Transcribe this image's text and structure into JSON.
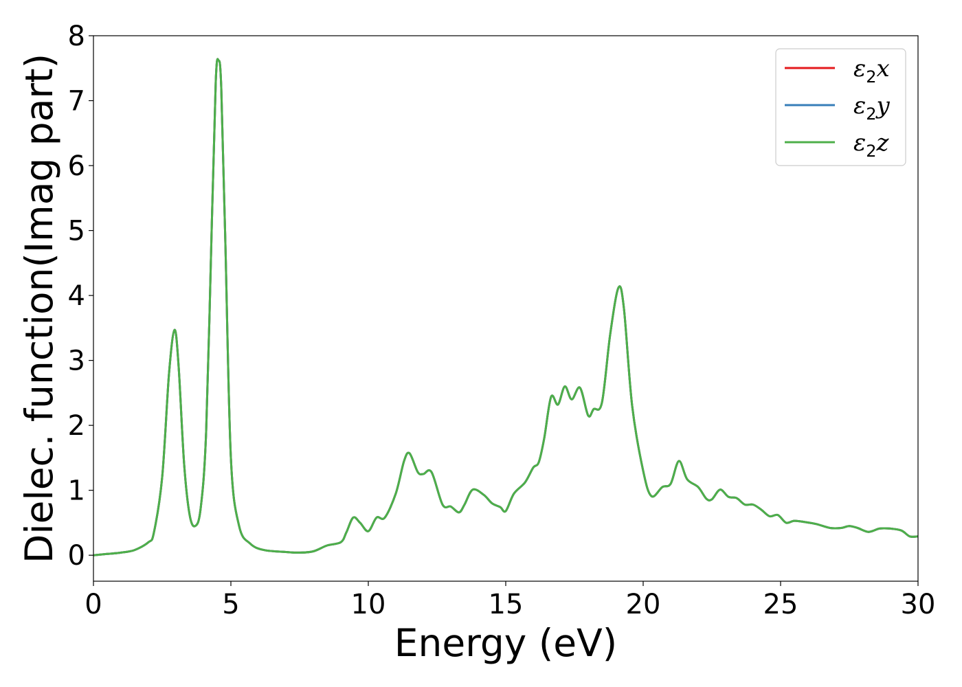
{
  "chart_data": {
    "type": "line",
    "xlabel": "Energy (eV)",
    "ylabel": "Dielec. function(Imag part)",
    "xlim": [
      0,
      30
    ],
    "ylim": [
      -0.4,
      8
    ],
    "xticks": [
      "0",
      "5",
      "10",
      "15",
      "20",
      "25",
      "30"
    ],
    "yticks": [
      "0",
      "1",
      "2",
      "3",
      "4",
      "5",
      "6",
      "7",
      "8"
    ],
    "grid": false,
    "legend_position": "top-right",
    "series": [
      {
        "name": "ε2x",
        "legend": {
          "base": "ε",
          "sub": "2",
          "tail": "x"
        },
        "color": "#e41a1c",
        "x": [
          0,
          0.5,
          1.0,
          1.5,
          2.0,
          2.2,
          2.5,
          2.75,
          2.95,
          3.1,
          3.3,
          3.5,
          3.7,
          3.9,
          4.1,
          4.3,
          4.45,
          4.55,
          4.65,
          4.8,
          5.0,
          5.3,
          5.7,
          6.2,
          7.0,
          7.5,
          8.0,
          8.5,
          9.0,
          9.2,
          9.45,
          9.7,
          10.0,
          10.3,
          10.6,
          11.0,
          11.3,
          11.5,
          11.8,
          12.0,
          12.3,
          12.7,
          13.0,
          13.3,
          13.5,
          13.8,
          14.2,
          14.5,
          14.8,
          15.0,
          15.3,
          15.7,
          16.0,
          16.2,
          16.4,
          16.65,
          16.9,
          17.15,
          17.4,
          17.7,
          18.0,
          18.2,
          18.5,
          18.8,
          19.1,
          19.3,
          19.6,
          20.0,
          20.3,
          20.7,
          21.0,
          21.3,
          21.6,
          22.0,
          22.3,
          22.5,
          22.8,
          23.1,
          23.4,
          23.7,
          24.0,
          24.3,
          24.6,
          24.9,
          25.2,
          25.5,
          25.9,
          26.3,
          26.8,
          27.2,
          27.5,
          27.8,
          28.2,
          28.6,
          29.0,
          29.4,
          29.7,
          30.0
        ],
        "y": [
          0,
          0.02,
          0.04,
          0.08,
          0.2,
          0.35,
          1.2,
          2.8,
          3.47,
          2.9,
          1.4,
          0.62,
          0.45,
          0.72,
          1.9,
          5.0,
          7.3,
          7.62,
          7.2,
          4.8,
          1.5,
          0.45,
          0.18,
          0.08,
          0.05,
          0.04,
          0.06,
          0.15,
          0.2,
          0.35,
          0.58,
          0.5,
          0.37,
          0.58,
          0.58,
          0.95,
          1.45,
          1.57,
          1.28,
          1.25,
          1.28,
          0.78,
          0.75,
          0.66,
          0.78,
          1.01,
          0.93,
          0.8,
          0.74,
          0.68,
          0.95,
          1.12,
          1.35,
          1.43,
          1.8,
          2.44,
          2.32,
          2.6,
          2.4,
          2.58,
          2.15,
          2.25,
          2.35,
          3.4,
          4.12,
          3.8,
          2.3,
          1.3,
          0.91,
          1.05,
          1.1,
          1.45,
          1.17,
          1.05,
          0.87,
          0.86,
          1.01,
          0.9,
          0.88,
          0.78,
          0.78,
          0.7,
          0.6,
          0.62,
          0.5,
          0.53,
          0.51,
          0.48,
          0.42,
          0.42,
          0.45,
          0.42,
          0.36,
          0.41,
          0.41,
          0.38,
          0.29,
          0.29
        ]
      },
      {
        "name": "ε2y",
        "legend": {
          "base": "ε",
          "sub": "2",
          "tail": "y"
        },
        "color": "#377eb8",
        "same_as": "ε2x"
      },
      {
        "name": "ε2z",
        "legend": {
          "base": "ε",
          "sub": "2",
          "tail": "z"
        },
        "color": "#4daf4a",
        "same_as": "ε2x"
      }
    ]
  }
}
